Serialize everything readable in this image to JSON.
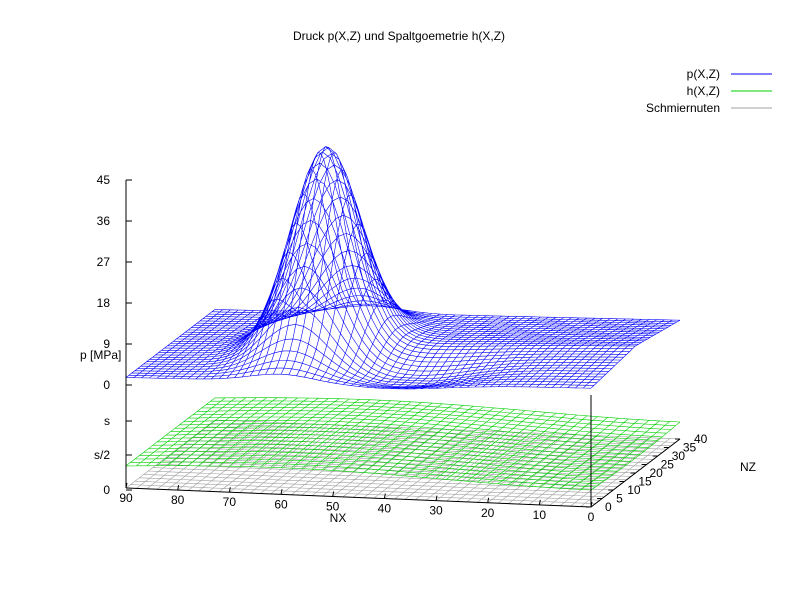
{
  "chart_data": {
    "type": "surface3d",
    "title": "Druck p(X,Z) und Spaltgoemetrie h(X,Z)",
    "xlabel": "NX",
    "ylabel": "NZ",
    "zlabel": "p [MPa]",
    "x_ticks": [
      "90",
      "80",
      "70",
      "60",
      "50",
      "40",
      "30",
      "20",
      "10",
      "0"
    ],
    "y_ticks": [
      "0",
      "5",
      "10",
      "15",
      "20",
      "25",
      "30",
      "35",
      "40"
    ],
    "z_ticks": [
      "45",
      "36",
      "27",
      "18",
      "9",
      "0"
    ],
    "z_sub_ticks": [
      "s",
      "s/2",
      "0"
    ],
    "xlim": [
      0,
      90
    ],
    "ylim": [
      0,
      40
    ],
    "zlim": [
      0,
      45
    ],
    "legend_position": "top-right",
    "series": [
      {
        "name": "p(X,Z)",
        "color": "#0000ff",
        "style": "wireframe",
        "peak_value": 43,
        "peak_x": 58,
        "peak_z": 20
      },
      {
        "name": "h(X,Z)",
        "color": "#00d000",
        "style": "wireframe"
      },
      {
        "name": "Schmiernuten",
        "color": "#a0a0a0",
        "style": "wireframe"
      }
    ]
  }
}
